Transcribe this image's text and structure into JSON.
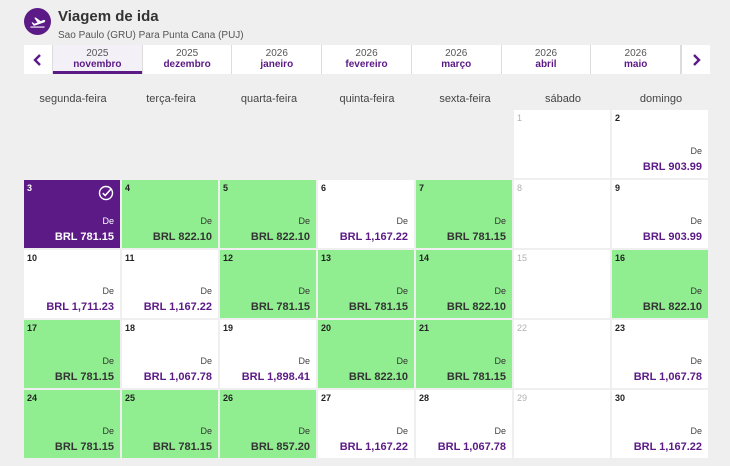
{
  "header": {
    "title": "Viagem de ida",
    "subtitle": "Sao Paulo (GRU) Para Punta Cana (PUJ)",
    "icon": "airplane-icon"
  },
  "months": [
    {
      "year": "2025",
      "name": "novembro",
      "active": true
    },
    {
      "year": "2025",
      "name": "dezembro",
      "active": false
    },
    {
      "year": "2026",
      "name": "janeiro",
      "active": false
    },
    {
      "year": "2026",
      "name": "fevereiro",
      "active": false
    },
    {
      "year": "2026",
      "name": "março",
      "active": false
    },
    {
      "year": "2026",
      "name": "abril",
      "active": false
    },
    {
      "year": "2026",
      "name": "maio",
      "active": false
    }
  ],
  "weekdays": [
    "segunda-feira",
    "terça-feira",
    "quarta-feira",
    "quinta-feira",
    "sexta-feira",
    "sábado",
    "domingo"
  ],
  "from_label": "De",
  "colors": {
    "brand": "#5b1a86",
    "cheap": "#90ee90"
  },
  "days": [
    {
      "day": "",
      "empty": true
    },
    {
      "day": "",
      "empty": true
    },
    {
      "day": "",
      "empty": true
    },
    {
      "day": "",
      "empty": true
    },
    {
      "day": "",
      "empty": true
    },
    {
      "day": "1",
      "price": "",
      "state": "disabled"
    },
    {
      "day": "2",
      "price": "BRL 903.99",
      "state": "normal"
    },
    {
      "day": "3",
      "price": "BRL 781.15",
      "state": "selected"
    },
    {
      "day": "4",
      "price": "BRL 822.10",
      "state": "green"
    },
    {
      "day": "5",
      "price": "BRL 822.10",
      "state": "green"
    },
    {
      "day": "6",
      "price": "BRL 1,167.22",
      "state": "normal"
    },
    {
      "day": "7",
      "price": "BRL 781.15",
      "state": "green"
    },
    {
      "day": "8",
      "price": "",
      "state": "disabled"
    },
    {
      "day": "9",
      "price": "BRL 903.99",
      "state": "normal"
    },
    {
      "day": "10",
      "price": "BRL 1,711.23",
      "state": "normal"
    },
    {
      "day": "11",
      "price": "BRL 1,167.22",
      "state": "normal"
    },
    {
      "day": "12",
      "price": "BRL 781.15",
      "state": "green"
    },
    {
      "day": "13",
      "price": "BRL 781.15",
      "state": "green"
    },
    {
      "day": "14",
      "price": "BRL 822.10",
      "state": "green"
    },
    {
      "day": "15",
      "price": "",
      "state": "disabled"
    },
    {
      "day": "16",
      "price": "BRL 822.10",
      "state": "green"
    },
    {
      "day": "17",
      "price": "BRL 781.15",
      "state": "green"
    },
    {
      "day": "18",
      "price": "BRL 1,067.78",
      "state": "normal"
    },
    {
      "day": "19",
      "price": "BRL 1,898.41",
      "state": "normal"
    },
    {
      "day": "20",
      "price": "BRL 822.10",
      "state": "green"
    },
    {
      "day": "21",
      "price": "BRL 781.15",
      "state": "green"
    },
    {
      "day": "22",
      "price": "",
      "state": "disabled"
    },
    {
      "day": "23",
      "price": "BRL 1,067.78",
      "state": "normal"
    },
    {
      "day": "24",
      "price": "BRL 781.15",
      "state": "green"
    },
    {
      "day": "25",
      "price": "BRL 781.15",
      "state": "green"
    },
    {
      "day": "26",
      "price": "BRL 857.20",
      "state": "green"
    },
    {
      "day": "27",
      "price": "BRL 1,167.22",
      "state": "normal"
    },
    {
      "day": "28",
      "price": "BRL 1,067.78",
      "state": "normal"
    },
    {
      "day": "29",
      "price": "",
      "state": "disabled"
    },
    {
      "day": "30",
      "price": "BRL 1,167.22",
      "state": "normal"
    }
  ]
}
